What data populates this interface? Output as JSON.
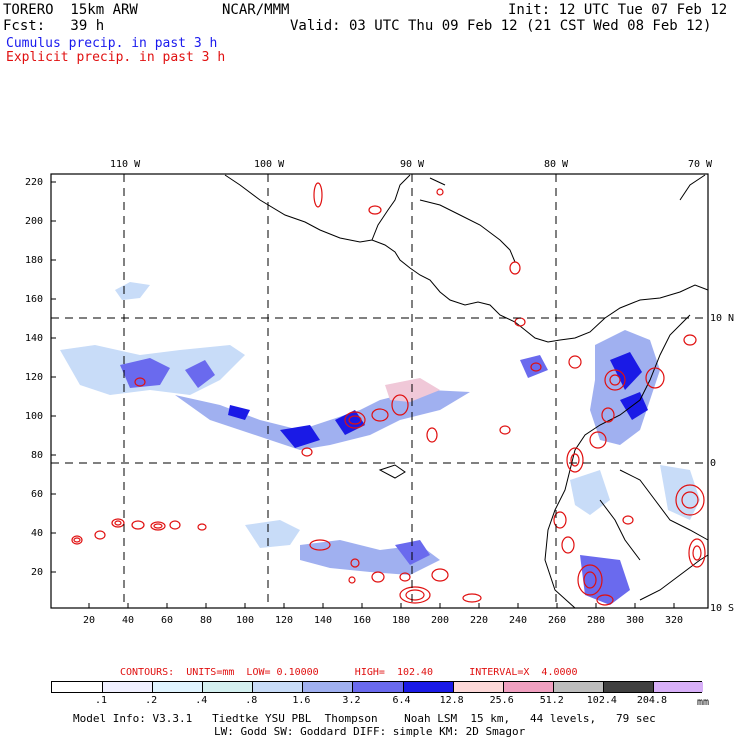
{
  "header": {
    "model": "TORERO  15km ARW",
    "org": "NCAR/MMM",
    "init": "Init: 12 UTC Tue 07 Feb 12",
    "fcst": "Fcst:   39 h",
    "valid": "Valid: 03 UTC Thu 09 Feb 12 (21 CST Wed 08 Feb 12)",
    "cumulus": "Cumulus precip. in past 3 h",
    "explicit": "Explicit precip. in past 3 h"
  },
  "map": {
    "lon_labels": [
      "110 W",
      "100 W",
      "90 W",
      "80 W",
      "70 W"
    ],
    "lat_labels": [
      "10 N",
      "0",
      "10 S"
    ],
    "grid_y_labels": [
      "220",
      "200",
      "180",
      "160",
      "140",
      "120",
      "100",
      "80",
      "60",
      "40",
      "20"
    ],
    "grid_x_labels": [
      "20",
      "40",
      "60",
      "80",
      "100",
      "120",
      "140",
      "160",
      "180",
      "200",
      "220",
      "240",
      "260",
      "280",
      "300",
      "320"
    ],
    "colors": {
      "cumulus_light": "#c8dcf8",
      "cumulus_mid": "#8c9cf0",
      "cumulus_dark": "#3a3ae0",
      "explicit": "#e01010",
      "heavy_pink": "#f0c8d8"
    }
  },
  "contours": {
    "text": "CONTOURS:  UNITS=mm  LOW= 0.10000      HIGH=  102.40      INTERVAL=X  4.0000"
  },
  "colorbar": {
    "labels": [
      ".1",
      ".2",
      ".4",
      ".8",
      "1.6",
      "3.2",
      "6.4",
      "12.8",
      "25.6",
      "51.2",
      "102.4",
      "204.8"
    ],
    "unit": "mm",
    "colors": [
      "#ffffff",
      "#f0f0ff",
      "#e0f4ff",
      "#d4f0f0",
      "#c8dcf8",
      "#a0b0f0",
      "#6a6aee",
      "#1a1ae6",
      "#fcd8d8",
      "#f0a0c0",
      "#bdbdbd",
      "#404040",
      "#d8b0f8"
    ]
  },
  "footer": {
    "line1": "Model Info: V3.3.1   Tiedtke YSU PBL  Thompson    Noah LSM  15 km,   44 levels,   79 sec",
    "line2": "LW: Godd SW: Goddard DIFF: simple KM: 2D Smagor"
  }
}
